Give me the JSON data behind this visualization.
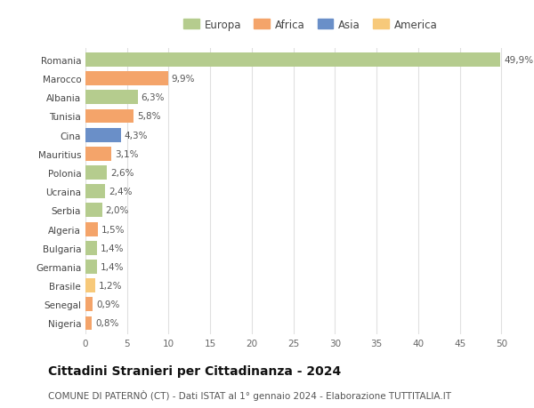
{
  "countries": [
    "Romania",
    "Marocco",
    "Albania",
    "Tunisia",
    "Cina",
    "Mauritius",
    "Polonia",
    "Ucraina",
    "Serbia",
    "Algeria",
    "Bulgaria",
    "Germania",
    "Brasile",
    "Senegal",
    "Nigeria"
  ],
  "values": [
    49.9,
    9.9,
    6.3,
    5.8,
    4.3,
    3.1,
    2.6,
    2.4,
    2.0,
    1.5,
    1.4,
    1.4,
    1.2,
    0.9,
    0.8
  ],
  "labels": [
    "49,9%",
    "9,9%",
    "6,3%",
    "5,8%",
    "4,3%",
    "3,1%",
    "2,6%",
    "2,4%",
    "2,0%",
    "1,5%",
    "1,4%",
    "1,4%",
    "1,2%",
    "0,9%",
    "0,8%"
  ],
  "colors": [
    "#b5cc8e",
    "#f4a46a",
    "#b5cc8e",
    "#f4a46a",
    "#6a8fc8",
    "#f4a46a",
    "#b5cc8e",
    "#b5cc8e",
    "#b5cc8e",
    "#f4a46a",
    "#b5cc8e",
    "#b5cc8e",
    "#f7c97a",
    "#f4a46a",
    "#f4a46a"
  ],
  "legend_labels": [
    "Europa",
    "Africa",
    "Asia",
    "America"
  ],
  "legend_colors": [
    "#b5cc8e",
    "#f4a46a",
    "#6a8fc8",
    "#f7c97a"
  ],
  "title": "Cittadini Stranieri per Cittadinanza - 2024",
  "subtitle": "COMUNE DI PATERNÒ (CT) - Dati ISTAT al 1° gennaio 2024 - Elaborazione TUTTITALIA.IT",
  "xlim": [
    0,
    52
  ],
  "xticks": [
    0,
    5,
    10,
    15,
    20,
    25,
    30,
    35,
    40,
    45,
    50
  ],
  "bg_color": "#ffffff",
  "grid_color": "#e0e0e0",
  "bar_height": 0.75,
  "label_fontsize": 7.5,
  "title_fontsize": 10,
  "subtitle_fontsize": 7.5,
  "tick_fontsize": 7.5,
  "legend_fontsize": 8.5
}
